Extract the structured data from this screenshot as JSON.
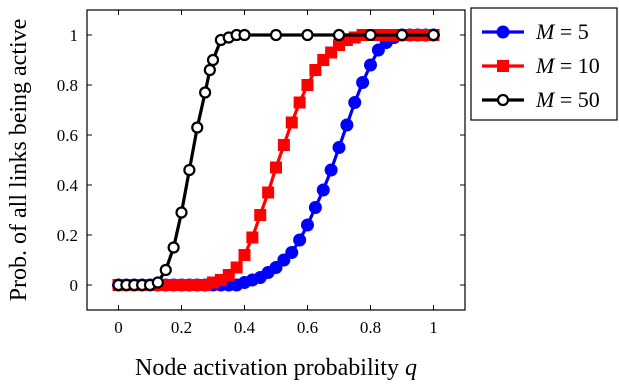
{
  "chart_data": {
    "type": "line",
    "xlabel": "Node activation probability",
    "xlabel_var": "q",
    "ylabel": "Prob. of all links being active",
    "xlim": [
      -0.1,
      1.1
    ],
    "ylim": [
      -0.1,
      1.1
    ],
    "xticks": [
      0,
      0.2,
      0.4,
      0.6,
      0.8,
      1
    ],
    "yticks": [
      0,
      0.2,
      0.4,
      0.6,
      0.8,
      1
    ],
    "xtick_labels": [
      "0",
      "0.2",
      "0.4",
      "0.6",
      "0.8",
      "1"
    ],
    "ytick_labels": [
      "0",
      "0.2",
      "0.4",
      "0.6",
      "0.8",
      "1"
    ],
    "grid": false,
    "legend_position": "outside-top-right",
    "series": [
      {
        "name": "M = 5",
        "legend_var": "M",
        "legend_value": "5",
        "color": "#0000ff",
        "marker": "circle",
        "x": [
          0.0,
          0.025,
          0.05,
          0.075,
          0.1,
          0.125,
          0.15,
          0.175,
          0.2,
          0.225,
          0.25,
          0.275,
          0.3,
          0.325,
          0.35,
          0.375,
          0.4,
          0.425,
          0.45,
          0.475,
          0.5,
          0.525,
          0.55,
          0.575,
          0.6,
          0.625,
          0.65,
          0.675,
          0.7,
          0.725,
          0.75,
          0.775,
          0.8,
          0.825,
          0.85,
          0.875,
          0.9,
          0.925,
          0.95,
          0.975,
          1.0
        ],
        "y": [
          0,
          0,
          0,
          0,
          0,
          0,
          0,
          0,
          0,
          0,
          0,
          0,
          0,
          0,
          0,
          0,
          0.01,
          0.02,
          0.03,
          0.05,
          0.07,
          0.1,
          0.13,
          0.18,
          0.24,
          0.31,
          0.38,
          0.46,
          0.55,
          0.64,
          0.73,
          0.81,
          0.88,
          0.94,
          0.97,
          0.99,
          1,
          1,
          1,
          1,
          1
        ]
      },
      {
        "name": "M = 10",
        "legend_var": "M",
        "legend_value": "10",
        "color": "#ff0000",
        "marker": "square",
        "x": [
          0.0,
          0.025,
          0.05,
          0.075,
          0.1,
          0.125,
          0.15,
          0.175,
          0.2,
          0.225,
          0.25,
          0.275,
          0.3,
          0.325,
          0.35,
          0.375,
          0.4,
          0.425,
          0.45,
          0.475,
          0.5,
          0.525,
          0.55,
          0.575,
          0.6,
          0.625,
          0.65,
          0.675,
          0.7,
          0.725,
          0.75,
          0.775,
          0.8,
          0.825,
          0.85,
          0.875,
          0.9,
          0.925,
          0.95,
          0.975,
          1.0
        ],
        "y": [
          0,
          0,
          0,
          0,
          0,
          0,
          0,
          0,
          0,
          0,
          0,
          0,
          0.01,
          0.02,
          0.04,
          0.07,
          0.12,
          0.19,
          0.28,
          0.37,
          0.47,
          0.56,
          0.65,
          0.73,
          0.8,
          0.86,
          0.9,
          0.93,
          0.96,
          0.98,
          0.99,
          1,
          1,
          1,
          1,
          1,
          1,
          1,
          1,
          1,
          1
        ]
      },
      {
        "name": "M = 50",
        "legend_var": "M",
        "legend_value": "50",
        "color": "#000000",
        "marker": "circle-open",
        "x": [
          0.0,
          0.025,
          0.05,
          0.075,
          0.1,
          0.125,
          0.15,
          0.175,
          0.2,
          0.225,
          0.25,
          0.275,
          0.29,
          0.3,
          0.325,
          0.35,
          0.375,
          0.4,
          0.5,
          0.6,
          0.7,
          0.8,
          0.9,
          1.0
        ],
        "y": [
          0,
          0,
          0,
          0,
          0,
          0.01,
          0.06,
          0.15,
          0.29,
          0.46,
          0.63,
          0.77,
          0.86,
          0.9,
          0.98,
          0.99,
          1,
          1,
          1,
          1,
          1,
          1,
          1,
          1
        ]
      }
    ]
  }
}
